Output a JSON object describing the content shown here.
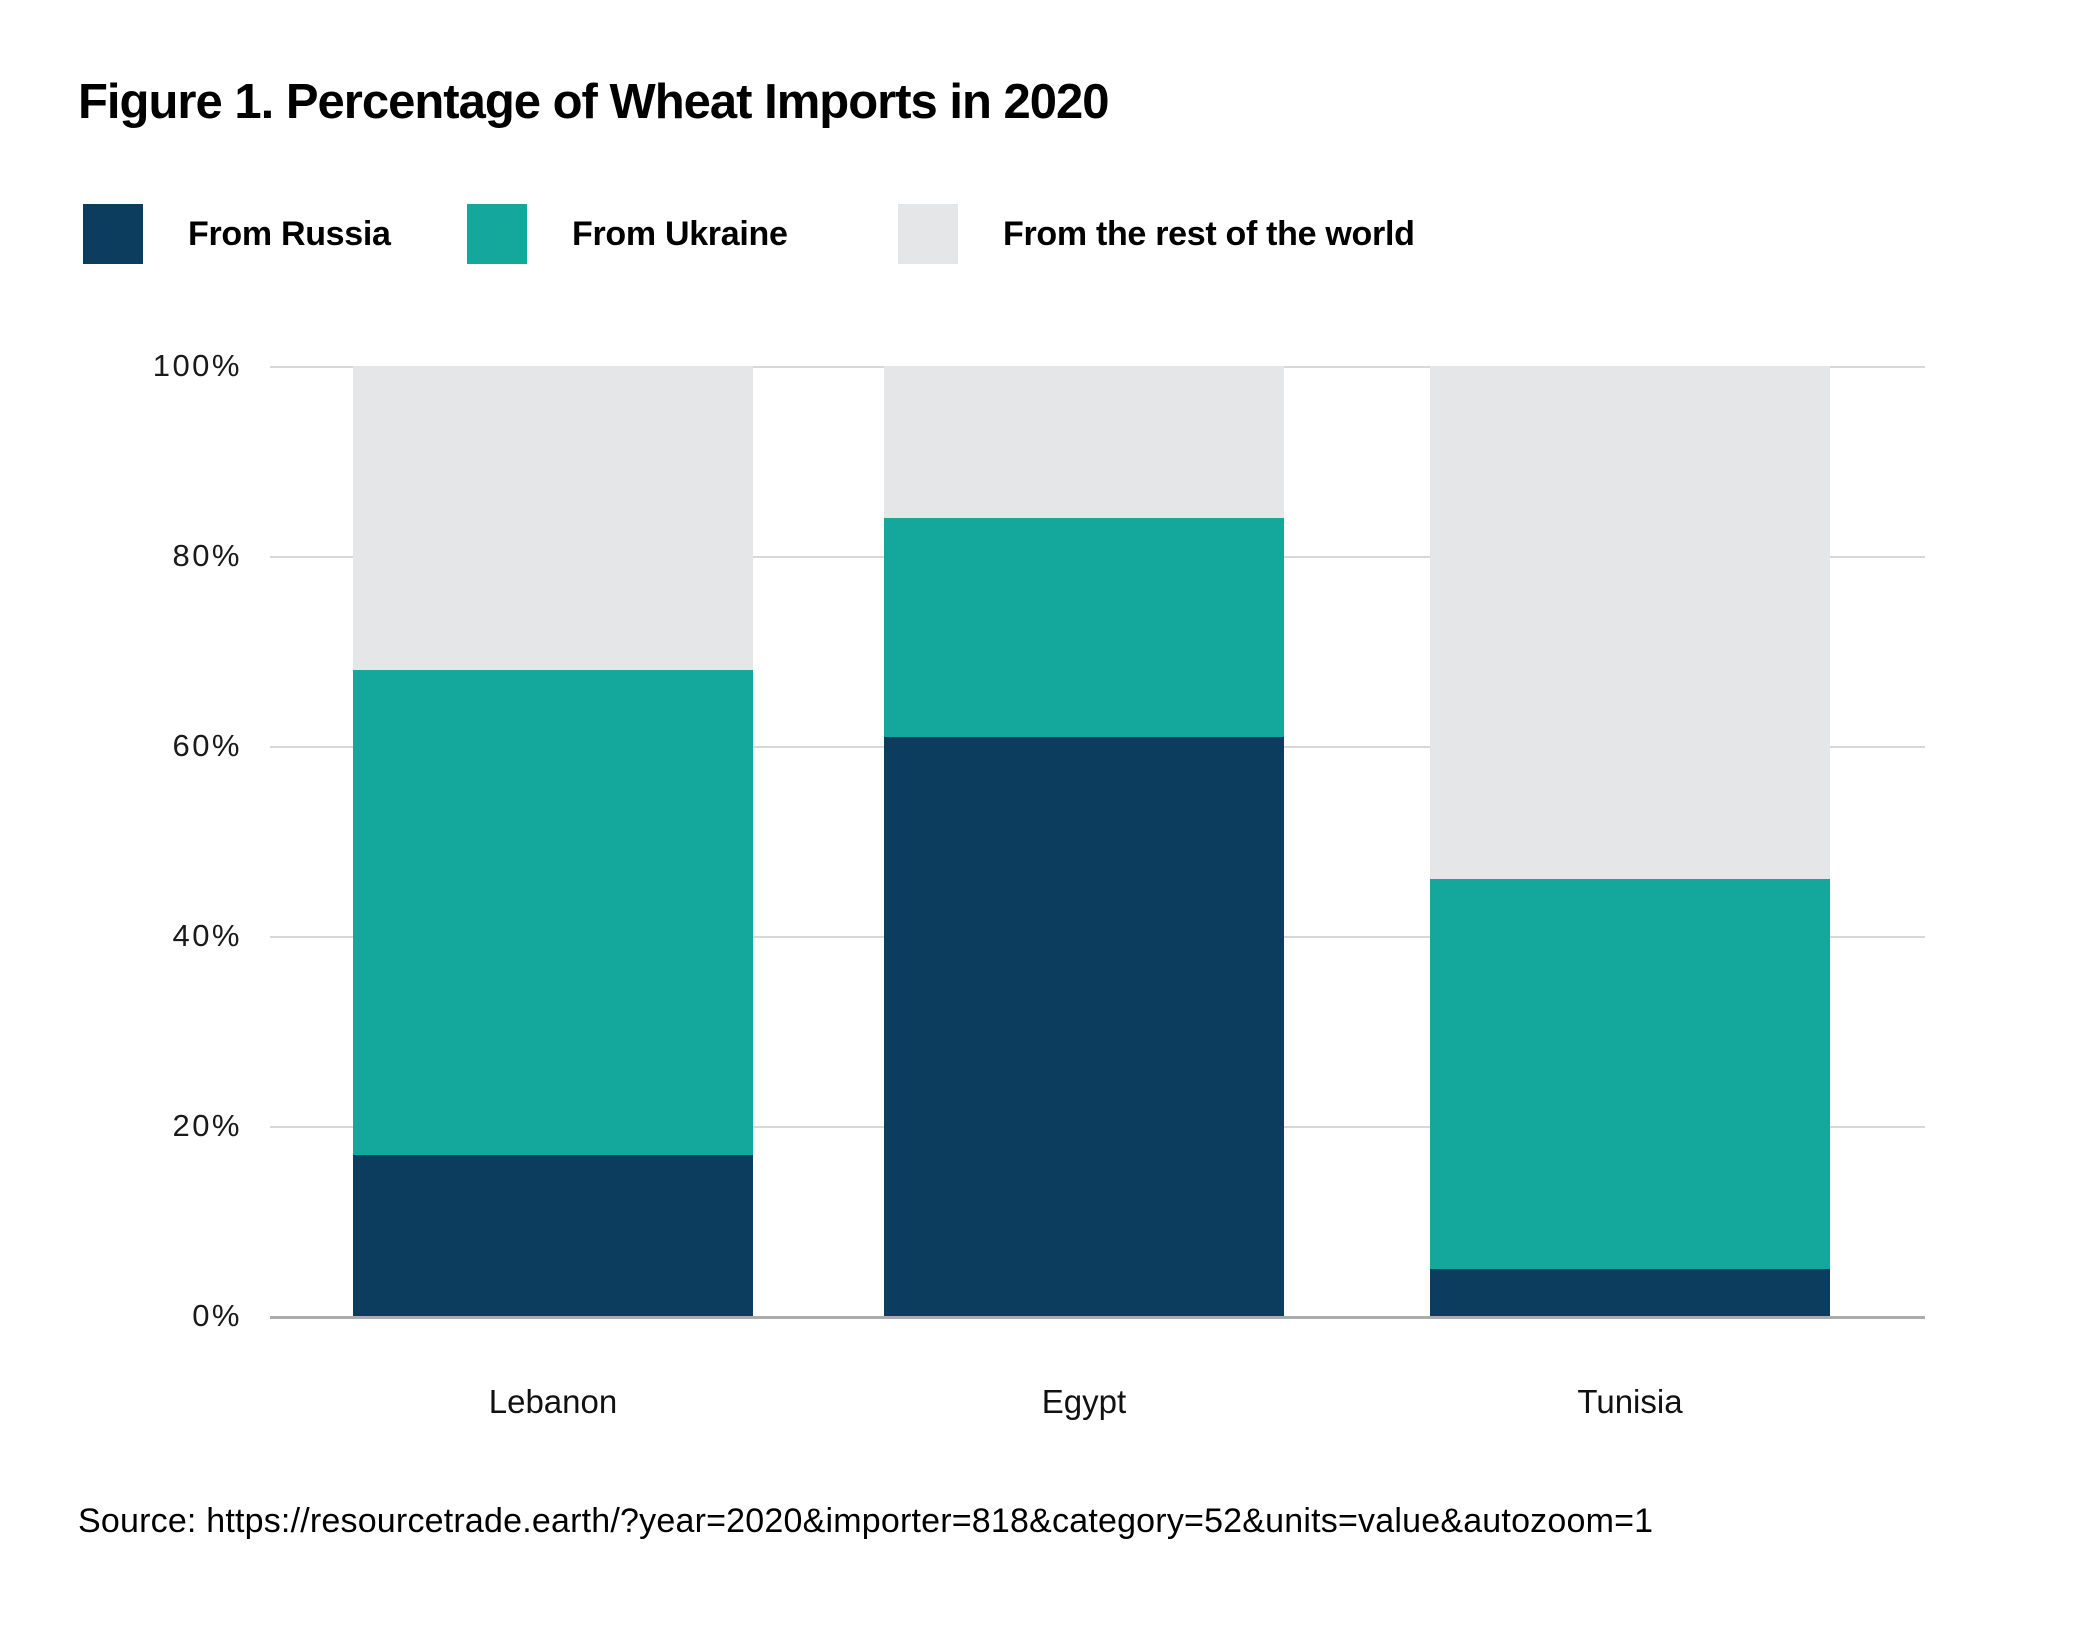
{
  "figure": {
    "title": "Figure 1. Percentage of Wheat Imports in 2020",
    "source": "Source: https://resourcetrade.earth/?year=2020&importer=818&category=52&units=value&autozoom=1"
  },
  "legend": [
    {
      "label": "From Russia",
      "color": "#0C3C5E",
      "swatch": "navy-square-swatch"
    },
    {
      "label": "From Ukraine",
      "color": "#14A79C",
      "swatch": "teal-square-swatch"
    },
    {
      "label": "From the rest of the world",
      "color": "#E5E6E8",
      "swatch": "gray-square-swatch"
    }
  ],
  "chart_data": {
    "type": "bar",
    "stacked": true,
    "title": "Figure 1. Percentage of Wheat Imports in 2020",
    "categories": [
      "Lebanon",
      "Egypt",
      "Tunisia"
    ],
    "series": [
      {
        "name": "From Russia",
        "color": "#0C3C5E",
        "values": [
          17,
          61,
          5
        ]
      },
      {
        "name": "From Ukraine",
        "color": "#14A79C",
        "values": [
          51,
          23,
          41
        ]
      },
      {
        "name": "From the rest of the world",
        "color": "#E5E6E8",
        "values": [
          32,
          16,
          54
        ]
      }
    ],
    "totals_by_category": [
      100,
      100,
      100
    ],
    "cumulative_tops_by_category": {
      "Lebanon": {
        "From Russia": 17,
        "From Ukraine": 68,
        "From the rest of the world": 100
      },
      "Egypt": {
        "From Russia": 61,
        "From Ukraine": 84,
        "From the rest of the world": 100
      },
      "Tunisia": {
        "From Russia": 5,
        "From Ukraine": 46,
        "From the rest of the world": 100
      }
    },
    "xlabel": "",
    "ylabel": "",
    "y_ticks": [
      "100%",
      "80%",
      "60%",
      "40%",
      "20%",
      "0%"
    ],
    "ylim": [
      0,
      100
    ],
    "grid": true,
    "legend_position": "top",
    "gridline_color": "#D8D8D8",
    "axis_line_color": "#ACACAC",
    "background_color": "#FFFFFF"
  }
}
